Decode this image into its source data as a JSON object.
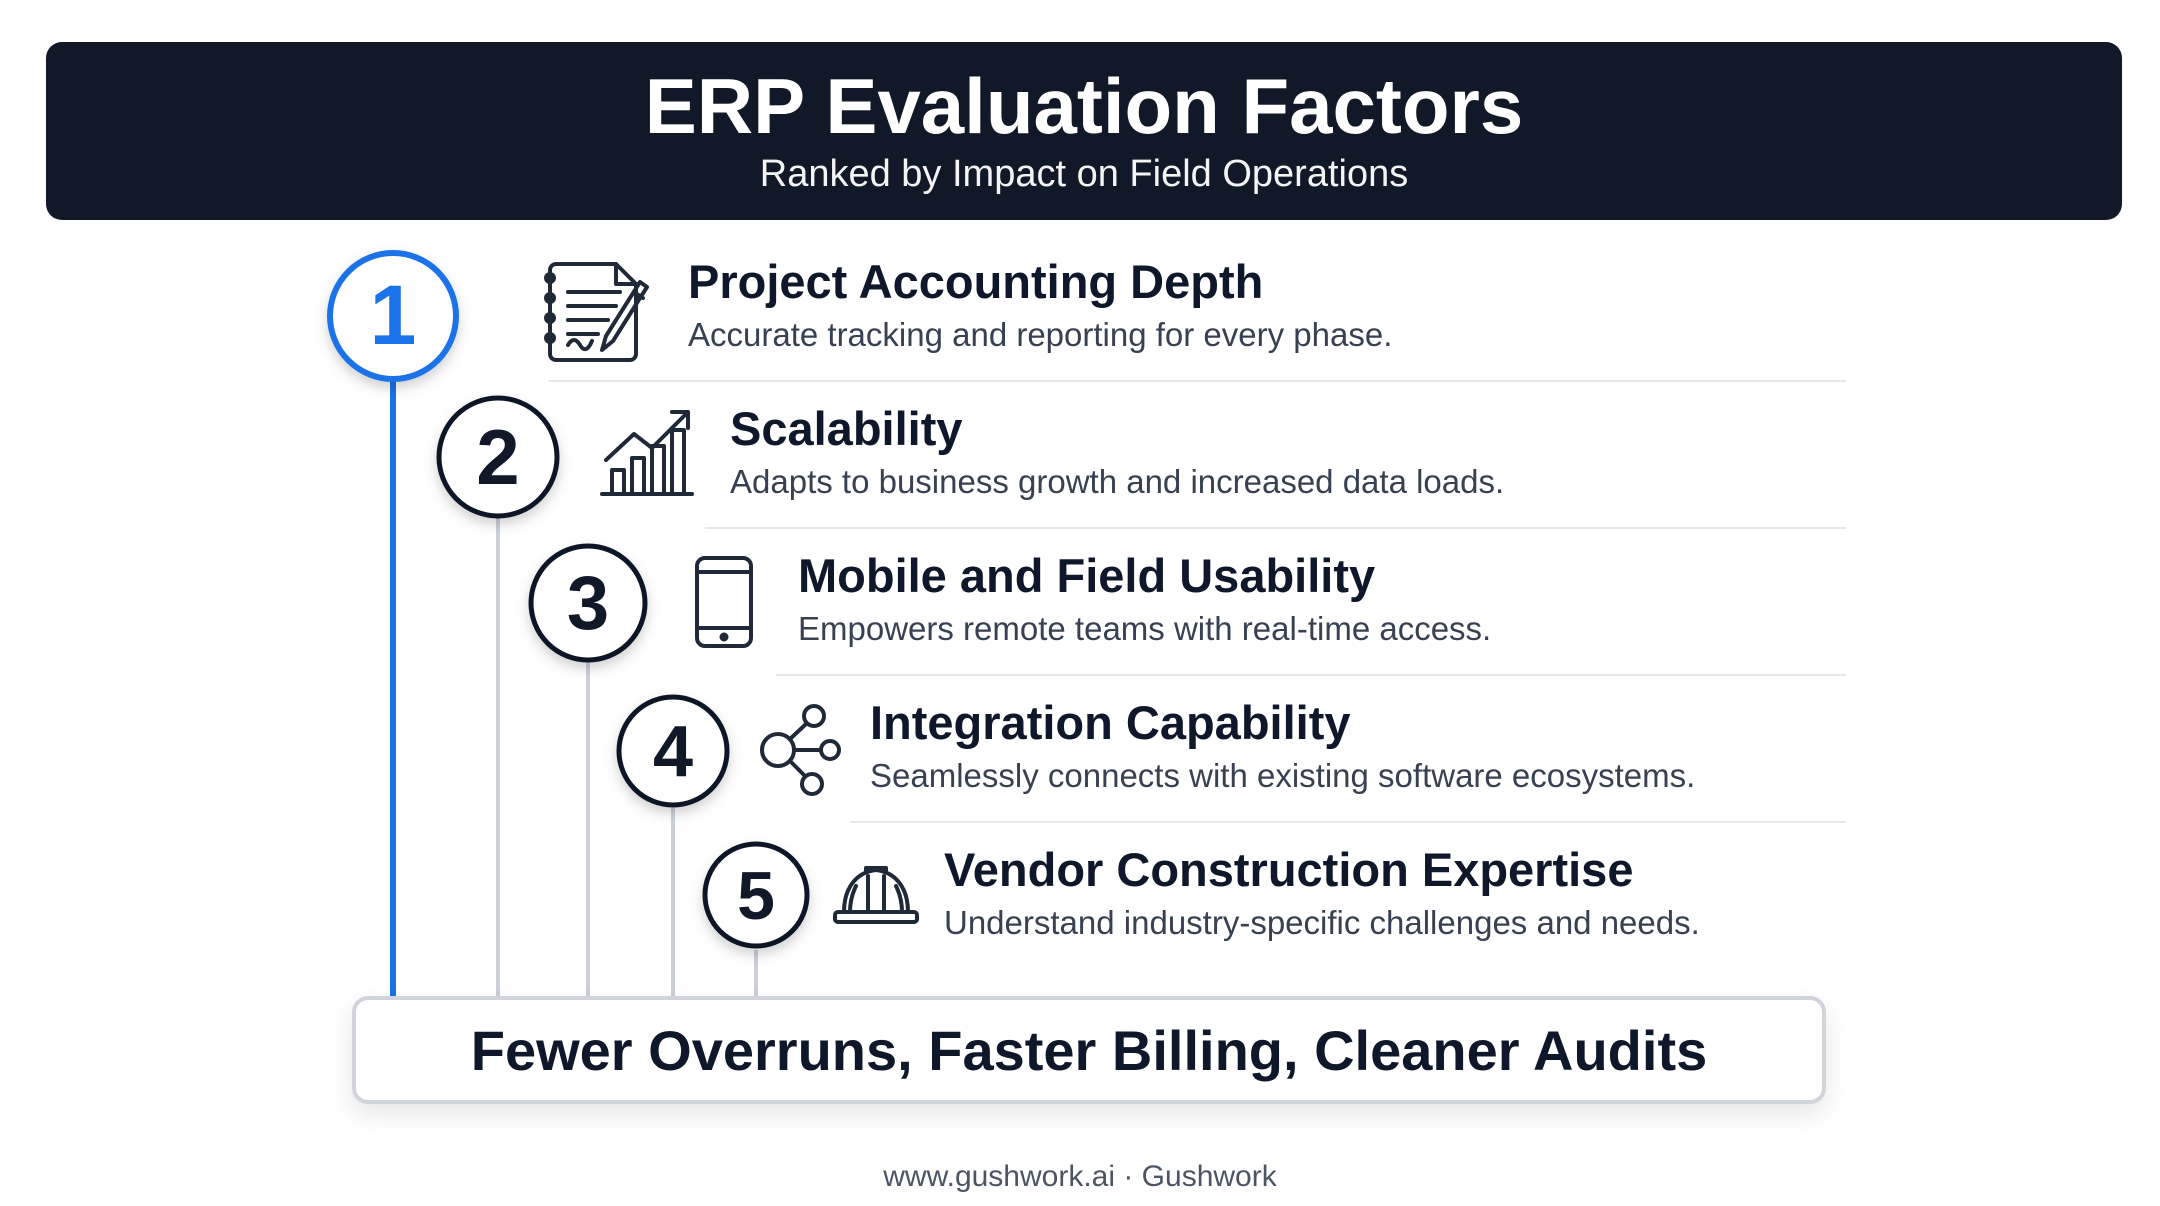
{
  "header": {
    "title": "ERP Evaluation Factors",
    "subtitle": "Ranked by Impact on Field Operations"
  },
  "factors": [
    {
      "rank": "1",
      "title": "Project Accounting Depth",
      "description": "Accurate tracking and reporting for every phase.",
      "icon": "document-pen-icon",
      "highlight": true
    },
    {
      "rank": "2",
      "title": "Scalability",
      "description": "Adapts to business growth and increased data loads.",
      "icon": "growth-chart-icon",
      "highlight": false
    },
    {
      "rank": "3",
      "title": "Mobile and Field Usability",
      "description": "Empowers remote teams with real-time access.",
      "icon": "mobile-phone-icon",
      "highlight": false
    },
    {
      "rank": "4",
      "title": "Integration Capability",
      "description": "Seamlessly connects with existing software ecosystems.",
      "icon": "share-network-icon",
      "highlight": false
    },
    {
      "rank": "5",
      "title": "Vendor Construction Expertise",
      "description": "Understand industry-specific challenges and needs.",
      "icon": "hard-hat-icon",
      "highlight": false
    }
  ],
  "outcome": "Fewer Overruns, Faster Billing, Cleaner Audits",
  "footer": "www.gushwork.ai · Gushwork",
  "colors": {
    "header_bg": "#111827",
    "accent_blue": "#1a73e8",
    "connector_gray": "#cbd0d8",
    "text_dark": "#0f172a"
  }
}
